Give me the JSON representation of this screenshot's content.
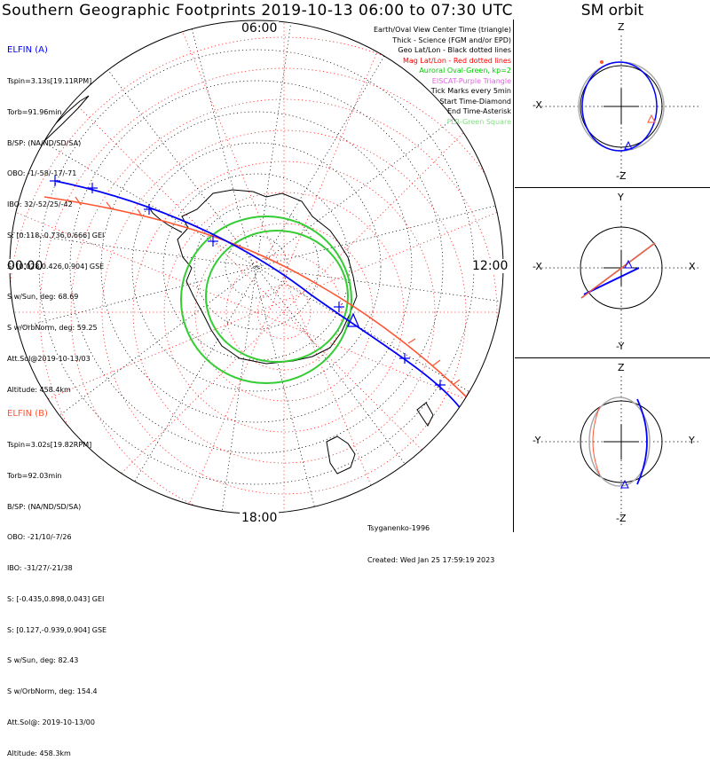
{
  "title": "Southern Geographic Footprints 2019-10-13 06:00 to 07:30 UTC",
  "sm_title": "SM orbit",
  "time_labels": {
    "top": "06:00",
    "left": "00:00",
    "right": "12:00",
    "bottom": "18:00"
  },
  "elfin_a": {
    "header": "ELFIN (A)",
    "lines": [
      "Tspin=3.13s[19.11RPM]",
      "Torb=91.96min",
      "B/SP: (NA/ND/SD/SA)",
      "OBO: -1/-58/-17/-71",
      "IBO: 32/-52/25/-42",
      "S: [0.118,-0.736,0.666] GEI",
      "S: [0.028,0.426,0.904] GSE",
      "S w/Sun, deg: 68.69",
      "S w/OrbNorm, deg: 59.25",
      "Att.Sol@2019-10-13/03",
      "Altitude: 458.4km"
    ],
    "color": "#0000ff"
  },
  "elfin_b": {
    "header": "ELFIN (B)",
    "lines": [
      "Tspin=3.02s[19.82RPM]",
      "Torb=92.03min",
      "B/SP: (NA/ND/SD/SA)",
      "OBO: -21/10/-7/26",
      "IBO: -31/27/-21/38",
      "S: [-0.435,0.898,0.043] GEI",
      "S: [0.127,-0.939,0.904] GSE",
      "S w/Sun, deg: 82.43",
      "S w/OrbNorm, deg: 154.4",
      "Att.Sol@: 2019-10-13/00",
      "Altitude: 458.3km"
    ],
    "color": "#ff5533"
  },
  "legend": [
    {
      "text": "Earth/Oval View Center Time (triangle)",
      "color": "#000000"
    },
    {
      "text": "Thick - Science (FGM and/or EPD)",
      "color": "#000000"
    },
    {
      "text": "Geo Lat/Lon - Black dotted lines",
      "color": "#000000"
    },
    {
      "text": "Mag Lat/Lon - Red dotted lines",
      "color": "#ff0000"
    },
    {
      "text": "Auroral Oval-Green, kp=2",
      "color": "#00cc00"
    },
    {
      "text": "EISCAT-Purple Triangle",
      "color": "#dd66dd"
    },
    {
      "text": "Tick Marks every 5min",
      "color": "#000000"
    },
    {
      "text": "Start Time-Diamond",
      "color": "#000000"
    },
    {
      "text": "End Time-Asterisk",
      "color": "#000000"
    },
    {
      "text": "FLR-Green Square",
      "color": "#88dd88"
    }
  ],
  "credit": {
    "model": "Tsyganenko-1996",
    "created": "Created: Wed Jan 25 17:59:19 2023"
  },
  "sm_panels": [
    {
      "top": "Z",
      "bottom": "-Z",
      "left": "-X",
      "right": ""
    },
    {
      "top": "Y",
      "bottom": "-Y",
      "left": "-X",
      "right": "X"
    },
    {
      "top": "Z",
      "bottom": "-Z",
      "left": "-Y",
      "right": "Y"
    }
  ]
}
